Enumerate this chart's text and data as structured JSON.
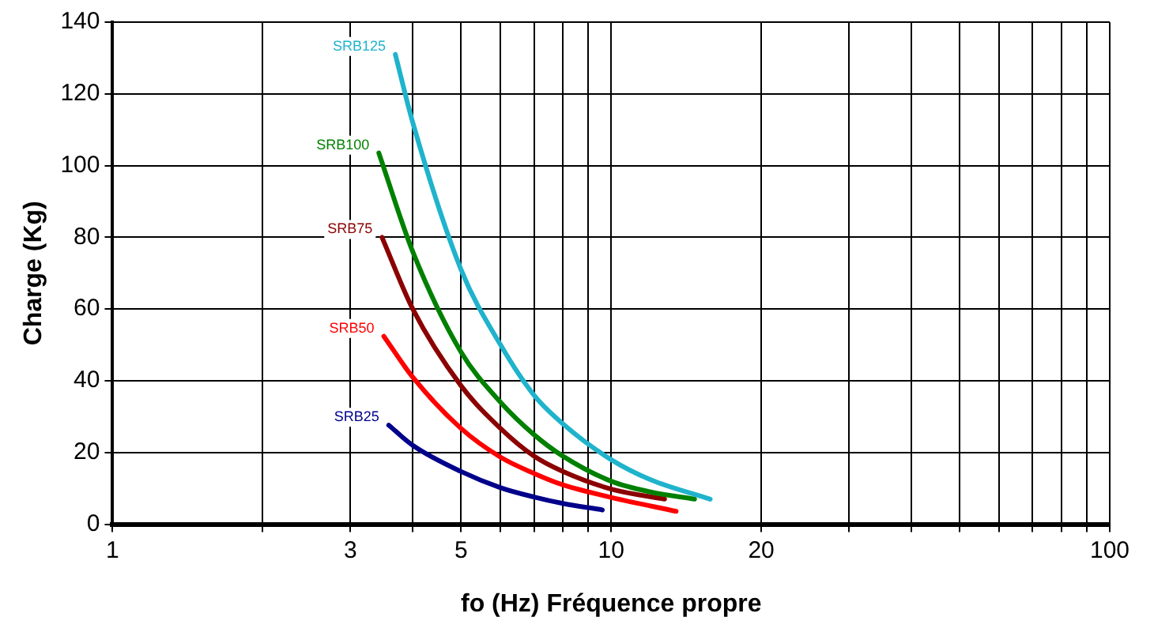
{
  "chart_data": {
    "type": "line",
    "xlabel": "fo (Hz) Fréquence propre",
    "ylabel": "Charge (Kg)",
    "log": "x",
    "grid": true,
    "legend": false,
    "marker": "none",
    "line_style": "solid",
    "xlim": [
      1,
      100
    ],
    "xticks": [
      1,
      {
        "value": 2,
        "label": null
      },
      3,
      {
        "value": 4,
        "label": null
      },
      5,
      {
        "value": 6,
        "label": null
      },
      {
        "value": 7,
        "label": null
      },
      {
        "value": 8,
        "label": null
      },
      {
        "value": 9,
        "label": null
      },
      10,
      20,
      {
        "value": 30,
        "label": null
      },
      {
        "value": 40,
        "label": null
      },
      {
        "value": 50,
        "label": null
      },
      {
        "value": 60,
        "label": null
      },
      {
        "value": 70,
        "label": null
      },
      {
        "value": 80,
        "label": null
      },
      {
        "value": 90,
        "label": null
      },
      100
    ],
    "ylim": [
      0,
      140
    ],
    "yticks": [
      0,
      20,
      40,
      60,
      80,
      100,
      120,
      140
    ],
    "series": [
      {
        "name": "SRB125",
        "color": "#1fb3cc",
        "x": [
          3.69,
          4,
          5,
          6,
          7,
          8,
          10,
          12,
          15.8
        ],
        "values": [
          131,
          112,
          71,
          50,
          36,
          28,
          18,
          12.4,
          7
        ]
      },
      {
        "name": "SRB100",
        "color": "#008000",
        "x": [
          3.42,
          4,
          5,
          6,
          7,
          8,
          10,
          12,
          14.7
        ],
        "values": [
          103.5,
          76,
          48,
          34,
          25,
          19,
          12,
          9,
          7
        ]
      },
      {
        "name": "SRB75",
        "color": "#8b0000",
        "x": [
          3.47,
          4,
          5,
          6,
          7,
          8,
          10,
          12.8
        ],
        "values": [
          80,
          60,
          38.6,
          26.7,
          19,
          14.7,
          9.8,
          7
        ]
      },
      {
        "name": "SRB50",
        "color": "#ff0000",
        "x": [
          3.5,
          4,
          5,
          6,
          7,
          8,
          10,
          13.5
        ],
        "values": [
          52.4,
          41,
          26.7,
          18.7,
          14.2,
          11,
          7.5,
          3.6
        ]
      },
      {
        "name": "SRB25",
        "color": "#00008b",
        "x": [
          3.58,
          4,
          5,
          6,
          7,
          8,
          9.6
        ],
        "values": [
          27.6,
          22,
          14.7,
          10.2,
          7.6,
          5.8,
          4
        ]
      }
    ]
  }
}
